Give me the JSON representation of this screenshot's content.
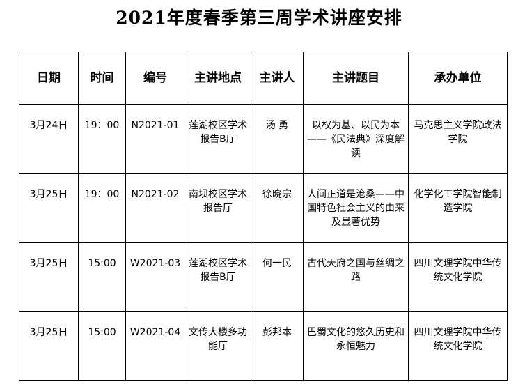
{
  "title": "2021年度春季第三周学术讲座安排",
  "headers": [
    "日期",
    "时间",
    "编号",
    "主讲地点",
    "主讲人",
    "主讲题目",
    "承办单位"
  ],
  "rows": [
    [
      "3月24日",
      "19：00",
      "N2021-01",
      "莲湖校区学术报告B厅",
      "汤 勇",
      "以权为基、以民为本——《民法典》深度解读",
      "马克思主义学院政法学院"
    ],
    [
      "3月25日",
      "19：00",
      "N2021-02",
      "南坝校区学术报告厅",
      "徐晓宗",
      "人间正道是沧桑——中国特色社会主义的由来及显著优势",
      "化学化工学院智能制造学院"
    ],
    [
      "3月25日",
      "15:00",
      "W2021-03",
      "莲湖校区学术报告B厅",
      "何一民",
      "古代天府之国与丝绸之路",
      "四川文理学院中华传统文化学院"
    ],
    [
      "3月25日",
      "15:00",
      "W2021-04",
      "文传大楼多功能厅",
      "彭邦本",
      "巴蜀文化的悠久历史和永恒魅力",
      "四川文理学院中华传统文化学院"
    ]
  ]
}
